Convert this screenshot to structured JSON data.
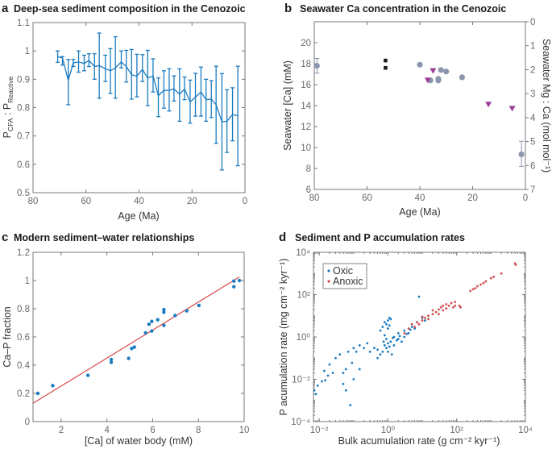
{
  "colors": {
    "blue": "#1b7bc0",
    "red": "#d24b4d",
    "grey_circle": "#8c96ac",
    "purple": "#9a3d97",
    "black_square": "#1a1a1a",
    "fit_line": "#d9464a"
  },
  "chart_data": [
    {
      "panel": "a",
      "title": "Deep-sea sediment composition in the Cenozoic",
      "type": "line",
      "xlabel": "Age (Ma)",
      "ylabel": {
        "p1": "P",
        "sub1": "CFA",
        "sep": " : ",
        "p2": "P",
        "sub2": "Reactive"
      },
      "xlim": [
        80,
        0
      ],
      "ylim": [
        0.5,
        1.1
      ],
      "xticks": [
        "80",
        "60",
        "40",
        "20",
        "0"
      ],
      "yticks": [
        "0.5",
        "0.6",
        "0.7",
        "0.8",
        "0.9",
        "1",
        "1.1"
      ],
      "grid": false,
      "series": [
        {
          "error_bars": true,
          "points": [
            {
              "x": 70.7,
              "y": 0.98,
              "lo": 0.96,
              "hi": 1.0
            },
            {
              "x": 68.9,
              "y": 0.975,
              "lo": 0.95,
              "hi": 0.98
            },
            {
              "x": 66.7,
              "y": 0.896,
              "lo": 0.81,
              "hi": 0.97
            },
            {
              "x": 64.8,
              "y": 0.958,
              "lo": 0.945,
              "hi": 0.97
            },
            {
              "x": 62.8,
              "y": 0.961,
              "lo": 0.925,
              "hi": 1.0
            },
            {
              "x": 60.7,
              "y": 0.956,
              "lo": 0.93,
              "hi": 0.985
            },
            {
              "x": 58.9,
              "y": 0.966,
              "lo": 0.945,
              "hi": 0.99
            },
            {
              "x": 56.8,
              "y": 0.945,
              "lo": 0.9,
              "hi": 0.99
            },
            {
              "x": 55.0,
              "y": 0.948,
              "lo": 0.833,
              "hi": 1.063
            },
            {
              "x": 52.7,
              "y": 0.937,
              "lo": 0.892,
              "hi": 0.985
            },
            {
              "x": 50.8,
              "y": 0.93,
              "lo": 0.85,
              "hi": 1.008
            },
            {
              "x": 48.9,
              "y": 0.94,
              "lo": 0.833,
              "hi": 1.05
            },
            {
              "x": 46.7,
              "y": 0.961,
              "lo": 0.94,
              "hi": 1.0
            },
            {
              "x": 44.8,
              "y": 0.945,
              "lo": 0.89,
              "hi": 1.002
            },
            {
              "x": 42.8,
              "y": 0.916,
              "lo": 0.83,
              "hi": 1.005
            },
            {
              "x": 40.8,
              "y": 0.911,
              "lo": 0.838,
              "hi": 0.988
            },
            {
              "x": 38.7,
              "y": 0.935,
              "lo": 0.892,
              "hi": 0.987
            },
            {
              "x": 36.7,
              "y": 0.904,
              "lo": 0.807,
              "hi": 1.002
            },
            {
              "x": 34.7,
              "y": 0.912,
              "lo": 0.855,
              "hi": 0.972
            },
            {
              "x": 32.7,
              "y": 0.842,
              "lo": 0.768,
              "hi": 0.905
            },
            {
              "x": 30.6,
              "y": 0.861,
              "lo": 0.798,
              "hi": 0.93
            },
            {
              "x": 28.6,
              "y": 0.861,
              "lo": 0.788,
              "hi": 0.937
            },
            {
              "x": 26.8,
              "y": 0.866,
              "lo": 0.823,
              "hi": 0.912
            },
            {
              "x": 24.7,
              "y": 0.847,
              "lo": 0.752,
              "hi": 0.937
            },
            {
              "x": 22.8,
              "y": 0.866,
              "lo": 0.828,
              "hi": 0.908
            },
            {
              "x": 20.7,
              "y": 0.82,
              "lo": 0.745,
              "hi": 0.897
            },
            {
              "x": 18.7,
              "y": 0.837,
              "lo": 0.77,
              "hi": 0.921
            },
            {
              "x": 16.6,
              "y": 0.855,
              "lo": 0.77,
              "hi": 0.943
            },
            {
              "x": 14.7,
              "y": 0.828,
              "lo": 0.752,
              "hi": 0.9
            },
            {
              "x": 12.7,
              "y": 0.83,
              "lo": 0.765,
              "hi": 0.895
            },
            {
              "x": 10.9,
              "y": 0.81,
              "lo": 0.674,
              "hi": 0.946
            },
            {
              "x": 8.7,
              "y": 0.75,
              "lo": 0.58,
              "hi": 0.92
            },
            {
              "x": 6.8,
              "y": 0.752,
              "lo": 0.642,
              "hi": 0.863
            },
            {
              "x": 4.7,
              "y": 0.776,
              "lo": 0.683,
              "hi": 0.87
            },
            {
              "x": 2.7,
              "y": 0.771,
              "lo": 0.595,
              "hi": 0.946
            }
          ]
        }
      ]
    },
    {
      "panel": "b",
      "title": "Seawater Ca concentration in the Cenozoic",
      "type": "scatter",
      "xlabel": "Age (Ma)",
      "ylabel": "Seawater [Ca] (mM)",
      "y2label": "Seawater Mg : Ca (mol mol⁻¹)",
      "xlim": [
        80,
        0
      ],
      "ylim": [
        6,
        22
      ],
      "y2lim": [
        7,
        0
      ],
      "xticks": [
        "80",
        "60",
        "40",
        "20",
        "0"
      ],
      "yticks": [
        "6",
        "8",
        "10",
        "12",
        "14",
        "16",
        "18",
        "20"
      ],
      "y2ticks": [
        "0",
        "1",
        "2",
        "3",
        "4",
        "5",
        "6",
        "7"
      ],
      "grid": false,
      "series": [
        {
          "marker": "circle",
          "points": [
            {
              "x": 79,
              "y": 17.8,
              "lo": 17.1,
              "hi": 18.5
            },
            {
              "x": 40,
              "y": 17.9
            },
            {
              "x": 36,
              "y": 16.4
            },
            {
              "x": 33,
              "y": 16.55
            },
            {
              "x": 33,
              "y": 16.4
            },
            {
              "x": 32,
              "y": 17.4
            },
            {
              "x": 30,
              "y": 17.25
            },
            {
              "x": 24,
              "y": 16.7
            },
            {
              "x": 1.5,
              "y": 9.35,
              "lo": 8.2,
              "hi": 10.6
            }
          ]
        },
        {
          "marker": "square",
          "points": [
            {
              "x": 53,
              "y": 18.3
            },
            {
              "x": 53,
              "y": 17.6
            }
          ]
        },
        {
          "marker": "triangle-down",
          "points": [
            {
              "x": 37,
              "y": 16.4
            },
            {
              "x": 35,
              "y": 17.3
            },
            {
              "x": 14,
              "y": 14.1
            },
            {
              "x": 5,
              "y": 13.7
            }
          ]
        }
      ]
    },
    {
      "panel": "c",
      "title": "Modern sediment–water relationships",
      "type": "scatter",
      "xlabel": "[Ca] of water body (mM)",
      "ylabel": "Ca–P fraction",
      "xlim": [
        0.77,
        10
      ],
      "ylim": [
        0,
        1.2
      ],
      "xticks": [
        "2",
        "4",
        "6",
        "8",
        "10"
      ],
      "yticks": [
        "0",
        "0.2",
        "0.4",
        "0.6",
        "0.8",
        "1",
        "1.2"
      ],
      "grid": false,
      "points": [
        [
          0.98,
          0.2
        ],
        [
          1.63,
          0.255
        ],
        [
          3.17,
          0.328
        ],
        [
          4.19,
          0.44
        ],
        [
          4.19,
          0.42
        ],
        [
          4.95,
          0.448
        ],
        [
          5.08,
          0.518
        ],
        [
          5.2,
          0.528
        ],
        [
          5.69,
          0.629
        ],
        [
          5.84,
          0.69
        ],
        [
          5.96,
          0.71
        ],
        [
          5.96,
          0.642
        ],
        [
          6.22,
          0.722
        ],
        [
          6.49,
          0.794
        ],
        [
          6.49,
          0.775
        ],
        [
          6.49,
          0.682
        ],
        [
          6.98,
          0.752
        ],
        [
          7.49,
          0.785
        ],
        [
          8.02,
          0.823
        ],
        [
          9.55,
          0.956
        ],
        [
          9.55,
          0.996
        ],
        [
          9.79,
          1.0
        ]
      ],
      "fit_line": {
        "x": [
          0.77,
          9.79
        ],
        "y": [
          0.13,
          1.025
        ]
      }
    },
    {
      "panel": "d",
      "title": "Sediment and P accumulation rates",
      "type": "scatter",
      "xlabel": "Bulk acumulation rate (g cm⁻² kyr⁻¹)",
      "ylabel": "P acumulation rate (mg cm⁻² kyr⁻¹)",
      "xscale": "log",
      "yscale": "log",
      "xlim": [
        0.0068,
        10000
      ],
      "ylim": [
        0.0001,
        10000
      ],
      "xticks": [
        "10⁻²",
        "10⁰",
        "10²",
        "10⁴"
      ],
      "yticks": [
        "10⁻⁴",
        "10⁻²",
        "10⁰",
        "10²",
        "10⁴"
      ],
      "grid": false,
      "legend_position": "top-left",
      "series": [
        {
          "name": "Oxic",
          "color_key": "blue",
          "points": [
            [
              0.0072,
              0.003
            ],
            [
              0.008,
              0.002
            ],
            [
              0.009,
              0.005
            ],
            [
              0.012,
              0.008
            ],
            [
              0.015,
              0.009
            ],
            [
              0.014,
              0.025
            ],
            [
              0.02,
              0.05
            ],
            [
              0.018,
              0.015
            ],
            [
              0.025,
              0.02
            ],
            [
              0.03,
              0.1
            ],
            [
              0.04,
              0.15
            ],
            [
              0.05,
              0.02
            ],
            [
              0.05,
              0.006
            ],
            [
              0.06,
              0.03
            ],
            [
              0.06,
              0.003
            ],
            [
              0.07,
              0.2
            ],
            [
              0.08,
              0.0006
            ],
            [
              0.09,
              0.06
            ],
            [
              0.1,
              0.3
            ],
            [
              0.1,
              0.01
            ],
            [
              0.12,
              0.2
            ],
            [
              0.15,
              0.4
            ],
            [
              0.15,
              0.03
            ],
            [
              0.2,
              0.3
            ],
            [
              0.25,
              0.5
            ],
            [
              0.3,
              0.2
            ],
            [
              0.4,
              0.3
            ],
            [
              0.5,
              0.25
            ],
            [
              0.6,
              0.15
            ],
            [
              0.7,
              0.2
            ],
            [
              0.8,
              0.4
            ],
            [
              0.9,
              0.3
            ],
            [
              1,
              0.5
            ],
            [
              1,
              0.2
            ],
            [
              1.2,
              0.6
            ],
            [
              1.5,
              0.4
            ],
            [
              1.5,
              1
            ],
            [
              2,
              0.8
            ],
            [
              2,
              1.5
            ],
            [
              3,
              1
            ],
            [
              3,
              2
            ],
            [
              4,
              1.5
            ],
            [
              5,
              3
            ],
            [
              6,
              2.5
            ],
            [
              7,
              5
            ],
            [
              10,
              8
            ],
            [
              12,
              6
            ],
            [
              15,
              10
            ],
            [
              8,
              80
            ],
            [
              0.7,
              3
            ],
            [
              0.8,
              5
            ],
            [
              0.9,
              4
            ],
            [
              1,
              6
            ],
            [
              1.1,
              8
            ],
            [
              1.2,
              7
            ],
            [
              0.6,
              2
            ],
            [
              1.1,
              3.5
            ],
            [
              1,
              2.5
            ],
            [
              0.5,
              0.1
            ],
            [
              1.3,
              0.15
            ],
            [
              0.8,
              1.2
            ],
            [
              1.8,
              0.7
            ],
            [
              2.5,
              0.6
            ],
            [
              0.9,
              0.8
            ],
            [
              1.1,
              0.35
            ],
            [
              1.4,
              0.9
            ],
            [
              0.75,
              0.6
            ],
            [
              2.2,
              1.1
            ],
            [
              3.5,
              1.4
            ],
            [
              4.5,
              2.2
            ]
          ]
        },
        {
          "name": "Anoxic",
          "color_key": "red",
          "points": [
            [
              3,
              1.5
            ],
            [
              4,
              2.5
            ],
            [
              5,
              4
            ],
            [
              6,
              3
            ],
            [
              7,
              5
            ],
            [
              8,
              4
            ],
            [
              10,
              6
            ],
            [
              10,
              9
            ],
            [
              12,
              8
            ],
            [
              15,
              10
            ],
            [
              15,
              7
            ],
            [
              20,
              12
            ],
            [
              20,
              18
            ],
            [
              25,
              15
            ],
            [
              30,
              20
            ],
            [
              30,
              12
            ],
            [
              35,
              25
            ],
            [
              40,
              18
            ],
            [
              40,
              30
            ],
            [
              50,
              22
            ],
            [
              50,
              35
            ],
            [
              60,
              30
            ],
            [
              70,
              40
            ],
            [
              80,
              25
            ],
            [
              90,
              45
            ],
            [
              90,
              30
            ],
            [
              120,
              30
            ],
            [
              130,
              25
            ],
            [
              250,
              150
            ],
            [
              300,
              180
            ],
            [
              350,
              200
            ],
            [
              400,
              250
            ],
            [
              500,
              300
            ],
            [
              600,
              350
            ],
            [
              700,
              420
            ],
            [
              1000,
              600
            ],
            [
              1200,
              700
            ],
            [
              2000,
              1000
            ],
            [
              5000,
              3000
            ],
            [
              5200,
              2600
            ]
          ]
        }
      ]
    }
  ]
}
